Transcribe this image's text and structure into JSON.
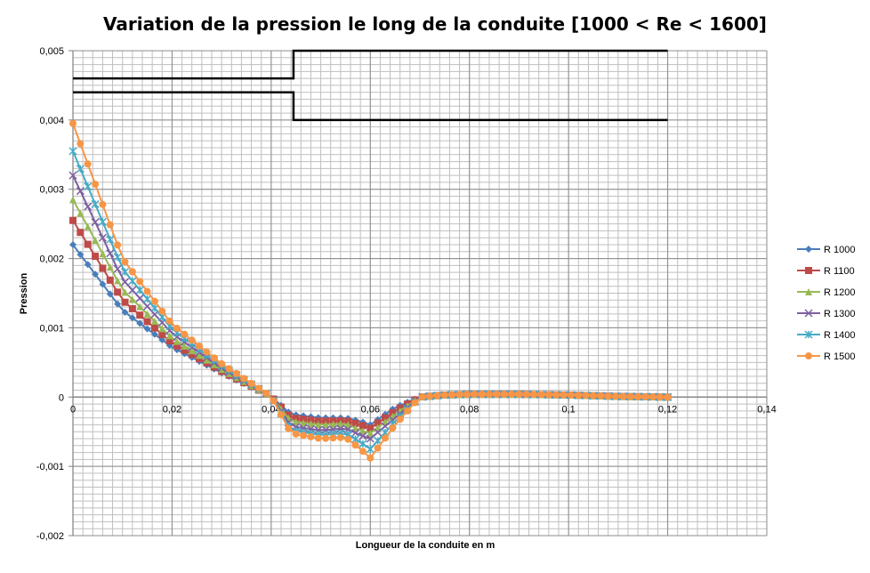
{
  "chart_data": {
    "type": "line",
    "title": "Variation de la pression le long de la conduite [1000 < Re < 1600]",
    "xlabel": "Longueur de la conduite  en m",
    "ylabel": "Pression",
    "xlim": [
      0,
      0.14
    ],
    "ylim": [
      -0.002,
      0.005
    ],
    "x_ticks": [
      "0",
      "0,02",
      "0,04",
      "0,06",
      "0,08",
      "0,1",
      "0,12",
      "0,14"
    ],
    "y_ticks": [
      "0,005",
      "0,004",
      "0,003",
      "0,002",
      "0,001",
      "0",
      "-0,001",
      "-0,002"
    ],
    "grid": true,
    "legend_position": "right",
    "x": [
      0,
      0.01,
      0.02,
      0.03,
      0.04,
      0.044,
      0.05,
      0.055,
      0.058,
      0.06,
      0.065,
      0.07,
      0.075,
      0.08,
      0.09,
      0.1,
      0.11,
      0.12
    ],
    "series": [
      {
        "name": "R 1000",
        "color": "#4a7ebb",
        "marker": "diamond",
        "values": [
          0.0022,
          0.00125,
          0.00072,
          0.00035,
          1e-05,
          -0.00025,
          -0.0003,
          -0.0003,
          -0.00035,
          -0.0004,
          -0.00015,
          0,
          3e-05,
          4e-05,
          4e-05,
          3e-05,
          1e-05,
          0
        ]
      },
      {
        "name": "R 1100",
        "color": "#be4b48",
        "marker": "square",
        "values": [
          0.00255,
          0.0014,
          0.00078,
          0.00037,
          1e-05,
          -0.0003,
          -0.00035,
          -0.00034,
          -0.0004,
          -0.00045,
          -0.0002,
          0,
          3e-05,
          4e-05,
          4e-05,
          3e-05,
          1e-05,
          0
        ]
      },
      {
        "name": "R 1200",
        "color": "#98b954",
        "marker": "triangle",
        "values": [
          0.00285,
          0.00155,
          0.00085,
          0.0004,
          1e-05,
          -0.00035,
          -0.0004,
          -0.00038,
          -0.00048,
          -0.00052,
          -0.00025,
          0,
          3e-05,
          4e-05,
          4e-05,
          3e-05,
          1e-05,
          0
        ]
      },
      {
        "name": "R 1300",
        "color": "#7d60a0",
        "marker": "x",
        "values": [
          0.0032,
          0.0017,
          0.00092,
          0.00042,
          1e-05,
          -0.00042,
          -0.00048,
          -0.00045,
          -0.00055,
          -0.0006,
          -0.0003,
          0,
          3e-05,
          4e-05,
          4e-05,
          3e-05,
          1e-05,
          0
        ]
      },
      {
        "name": "R 1400",
        "color": "#46aac5",
        "marker": "star",
        "values": [
          0.00355,
          0.00185,
          0.00098,
          0.00045,
          1e-05,
          -0.00048,
          -0.00055,
          -0.00052,
          -0.00065,
          -0.00075,
          -0.00035,
          0,
          3e-05,
          4e-05,
          4e-05,
          3e-05,
          1e-05,
          0
        ]
      },
      {
        "name": "R 1500",
        "color": "#f79646",
        "marker": "circle",
        "values": [
          0.00395,
          0.002,
          0.00105,
          0.00048,
          1e-05,
          -0.00052,
          -0.0006,
          -0.00058,
          -0.00075,
          -0.00088,
          -0.0004,
          0,
          3e-05,
          4e-05,
          4e-05,
          3e-05,
          1e-05,
          0
        ]
      }
    ],
    "annotation_step_lines": [
      {
        "x": [
          0,
          0.0445,
          0.0445,
          0.12
        ],
        "y": [
          0.0046,
          0.0046,
          0.005,
          0.005
        ]
      },
      {
        "x": [
          0,
          0.0445,
          0.0445,
          0.12
        ],
        "y": [
          0.0044,
          0.0044,
          0.004,
          0.004
        ]
      }
    ]
  }
}
